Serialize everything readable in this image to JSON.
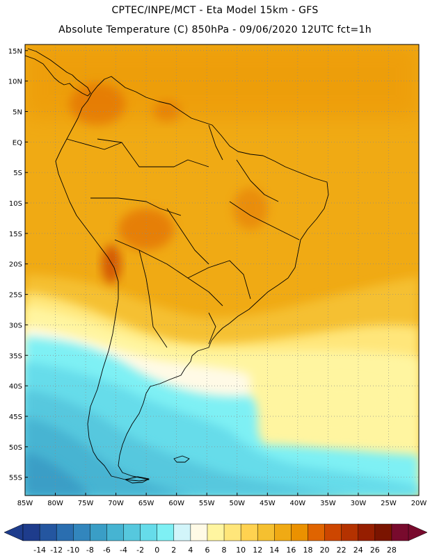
{
  "header": {
    "line1": "CPTEC/INPE/MCT -  Eta Model 15km - GFS",
    "line2": "Absolute Temperature (C) 850hPa - 09/06/2020 12UTC fct=1h"
  },
  "map": {
    "lon_range": [
      -85,
      -20
    ],
    "lat_range": [
      -58,
      16
    ],
    "lat_ticks": [
      "15N",
      "10N",
      "5N",
      "EQ",
      "5S",
      "10S",
      "15S",
      "20S",
      "25S",
      "30S",
      "35S",
      "40S",
      "45S",
      "50S",
      "55S"
    ],
    "lon_ticks": [
      "85W",
      "80W",
      "75W",
      "70W",
      "65W",
      "60W",
      "55W",
      "50W",
      "45W",
      "40W",
      "35W",
      "30W",
      "25W",
      "20W"
    ],
    "gridlines": true
  },
  "colorbar": {
    "labels": [
      "-14",
      "-12",
      "-10",
      "-8",
      "-6",
      "-4",
      "-2",
      "0",
      "2",
      "4",
      "6",
      "8",
      "10",
      "12",
      "14",
      "16",
      "18",
      "20",
      "22",
      "24",
      "26",
      "28"
    ],
    "colors": [
      "#1e3c8c",
      "#2456a0",
      "#2a6eb0",
      "#3286bd",
      "#3a9ec6",
      "#46b4d2",
      "#56c8de",
      "#66dcea",
      "#7ef0f4",
      "#d2f5fa",
      "#fffae6",
      "#fff5a0",
      "#ffe67a",
      "#ffd250",
      "#f5c030",
      "#f0aa14",
      "#eb9100",
      "#e06400",
      "#cd4600",
      "#b43200",
      "#961e00",
      "#7a1400",
      "#780a2d"
    ]
  }
}
